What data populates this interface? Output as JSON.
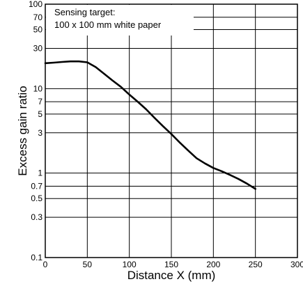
{
  "chart_data": {
    "type": "line",
    "xlabel": "Distance X (mm)",
    "ylabel": "Excess gain ratio",
    "yscale": "log",
    "xlim": [
      0,
      300
    ],
    "ylim": [
      0.1,
      100
    ],
    "x_ticks": [
      "0",
      "50",
      "100",
      "150",
      "200",
      "250",
      "300"
    ],
    "y_ticks": [
      "0.1",
      "0.3",
      "0.5",
      "0.7",
      "1",
      "3",
      "5",
      "7",
      "10",
      "30",
      "50",
      "70",
      "100"
    ],
    "annotation": {
      "line1": "Sensing target:",
      "line2": "100 x 100 mm white paper"
    },
    "grid": true,
    "series": [
      {
        "x": [
          0,
          10,
          20,
          30,
          40,
          50,
          60,
          70,
          80,
          90,
          100,
          110,
          120,
          130,
          140,
          150,
          160,
          170,
          180,
          190,
          200,
          210,
          220,
          230,
          240,
          250
        ],
        "values": [
          20,
          20.3,
          20.7,
          21,
          21,
          20.5,
          18,
          15,
          12.5,
          10.5,
          8.5,
          7,
          5.7,
          4.5,
          3.6,
          2.9,
          2.3,
          1.85,
          1.5,
          1.3,
          1.15,
          1.05,
          0.95,
          0.85,
          0.75,
          0.65
        ]
      }
    ]
  }
}
